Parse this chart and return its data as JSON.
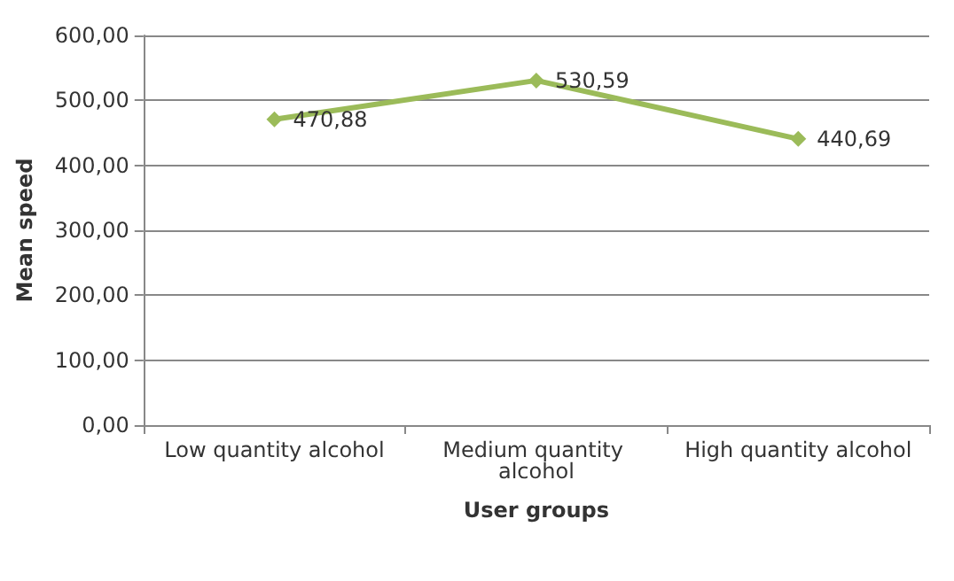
{
  "chart_data": {
    "type": "line",
    "xlabel": "User groups",
    "ylabel": "Mean speed",
    "categories": [
      "Low quantity alcohol",
      "Medium quantity alcohol",
      "High quantity alcohol"
    ],
    "series": [
      {
        "color": "#9bbb59",
        "values": [
          470.88,
          530.59,
          440.69
        ],
        "value_labels": [
          "470,88",
          "530,59",
          "440,69"
        ]
      }
    ],
    "ylim": [
      0,
      600
    ],
    "yticks": [
      {
        "value": 0,
        "label": "0,00"
      },
      {
        "value": 100,
        "label": "100,00"
      },
      {
        "value": 200,
        "label": "200,00"
      },
      {
        "value": 300,
        "label": "300,00"
      },
      {
        "value": 400,
        "label": "400,00"
      },
      {
        "value": 500,
        "label": "500,00"
      },
      {
        "value": 600,
        "label": "600,00"
      }
    ],
    "grid": "y",
    "marker": "diamond",
    "line_style": "solid"
  }
}
